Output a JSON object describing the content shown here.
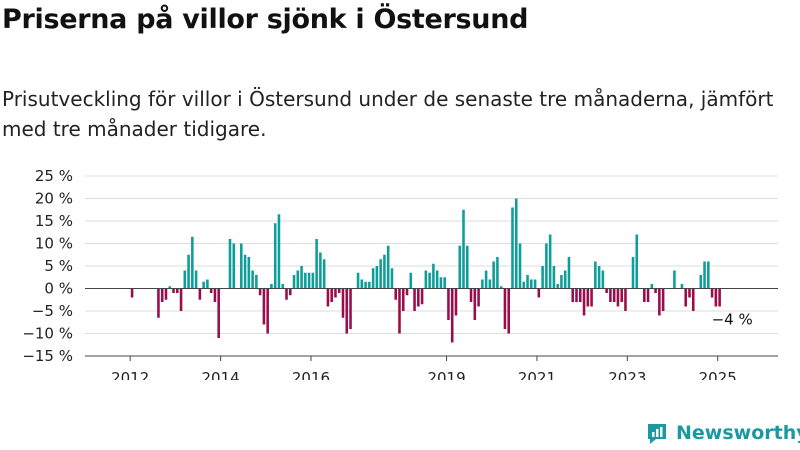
{
  "title": "Priserna på villor sjönk i Östersund",
  "subtitle": "Prisutveckling för villor i Östersund under de senaste tre månaderna, jämfört med tre månader tidigare.",
  "brand": {
    "name": "Newsworthy",
    "icon": "newsworthy-logo-icon",
    "color": "#1a9aa0"
  },
  "colors": {
    "positive": "#0e9e99",
    "negative": "#9b0d4a",
    "grid": "#dddddd",
    "axis": "#444444"
  },
  "chart_data": {
    "type": "bar",
    "x_start": "2011-01",
    "frequency": "monthly",
    "ylim": [
      -15,
      25
    ],
    "yticks": [
      25,
      20,
      15,
      10,
      5,
      0,
      -5,
      -10,
      -15
    ],
    "ytick_labels": [
      "25 %",
      "20 %",
      "15 %",
      "10 %",
      "5 %",
      "0 %",
      "−5 %",
      "−10 %",
      "−15 %"
    ],
    "xticks": [
      "2012",
      "2014",
      "2016",
      "2019",
      "2021",
      "2023",
      "2025"
    ],
    "annotation": {
      "text": "−4 %",
      "value": -4,
      "x": "2025-03"
    },
    "grid": true,
    "values": [
      null,
      null,
      null,
      null,
      null,
      null,
      null,
      null,
      null,
      null,
      null,
      null,
      -2,
      null,
      null,
      null,
      null,
      null,
      null,
      -6.5,
      -3,
      -2.5,
      0.5,
      -1,
      -1,
      -5,
      4,
      7.5,
      11.5,
      4,
      -2.5,
      1.5,
      2,
      -1,
      -3,
      -11,
      null,
      null,
      11,
      10,
      null,
      10,
      7.5,
      7,
      4,
      3,
      -1.5,
      -8,
      -10,
      1,
      14.5,
      16.5,
      1,
      -2.5,
      -1.5,
      3,
      4,
      5,
      3.5,
      3.5,
      3.5,
      11,
      8,
      6.5,
      -4,
      -3,
      -2,
      -1,
      -6.5,
      -10,
      -9,
      null,
      3.5,
      2,
      1.5,
      1.5,
      4.5,
      5,
      6.5,
      7.5,
      9.5,
      4.5,
      -2.5,
      -10,
      -5,
      -1.5,
      3.5,
      -5,
      -4,
      -3.5,
      4,
      3.5,
      5.5,
      4,
      2.5,
      2.5,
      -7,
      -12,
      -6,
      9.5,
      17.5,
      9.5,
      -3,
      -7,
      -4,
      2,
      4,
      2,
      6,
      7,
      0.5,
      -9,
      -10,
      18,
      20,
      10,
      1.5,
      3,
      2,
      2,
      -2,
      5,
      10,
      12,
      5,
      1,
      3,
      4,
      7,
      -3,
      -3,
      -3,
      -6,
      -4,
      -4,
      6,
      5,
      4,
      -1,
      -3,
      -3,
      -4,
      -3,
      -5,
      null,
      7,
      12,
      null,
      -3,
      -3,
      1,
      -1,
      -6,
      -5,
      null,
      null,
      4,
      null,
      1,
      -4,
      -2,
      -5,
      null,
      3,
      6,
      6,
      -2,
      -4,
      -4
    ]
  }
}
